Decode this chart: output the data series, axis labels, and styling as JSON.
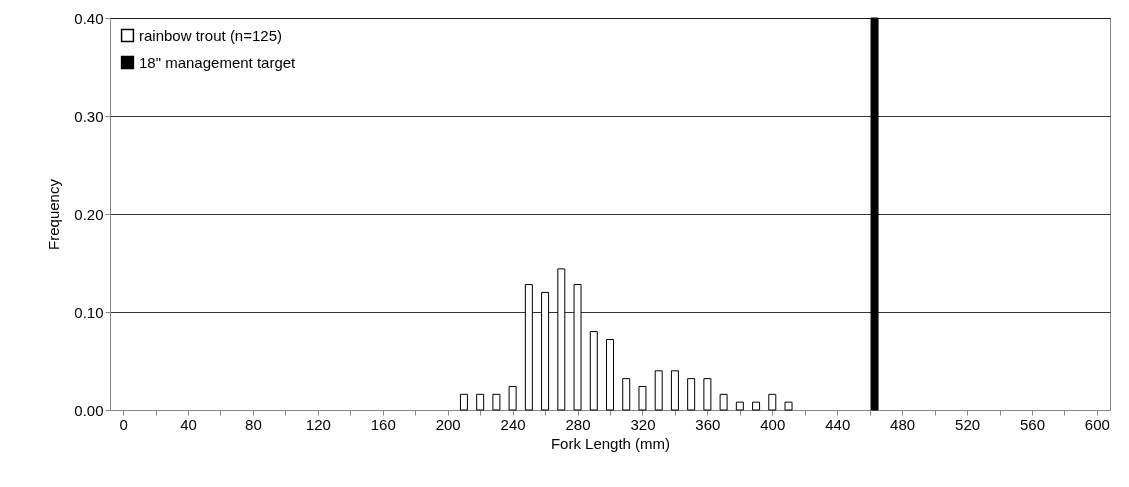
{
  "chart_data": {
    "type": "bar",
    "xlabel": "Fork Length (mm)",
    "ylabel": "Frequency",
    "xlim": [
      -5,
      605
    ],
    "xticks": [
      0,
      {
        "value": 20,
        "label": null
      },
      40,
      {
        "value": 60,
        "label": null
      },
      80,
      {
        "value": 100,
        "label": null
      },
      120,
      {
        "value": 140,
        "label": null
      },
      160,
      {
        "value": 180,
        "label": null
      },
      200,
      {
        "value": 220,
        "label": null
      },
      240,
      {
        "value": 260,
        "label": null
      },
      280,
      {
        "value": 300,
        "label": null
      },
      320,
      {
        "value": 340,
        "label": null
      },
      360,
      {
        "value": 380,
        "label": null
      },
      400,
      {
        "value": 420,
        "label": null
      },
      440,
      {
        "value": 460,
        "label": null
      },
      480,
      {
        "value": 500,
        "label": null
      },
      520,
      {
        "value": 540,
        "label": null
      },
      560,
      {
        "value": 580,
        "label": null
      },
      600
    ],
    "ylim": [
      0,
      0.4
    ],
    "yticks": [
      {
        "value": 0,
        "label": "0.00"
      },
      {
        "value": 0.1,
        "label": "0.10"
      },
      {
        "value": 0.2,
        "label": "0.20"
      },
      {
        "value": 0.3,
        "label": "0.30"
      },
      {
        "value": 0.4,
        "label": "0.40"
      }
    ],
    "grid": "y",
    "legend": "top left",
    "series": [
      {
        "name": "rainbow trout (n=125)",
        "color": "#ffffff",
        "x": [
          210,
          220,
          230,
          240,
          250,
          260,
          270,
          280,
          290,
          300,
          310,
          320,
          330,
          340,
          350,
          360,
          370,
          380,
          390,
          400,
          410
        ],
        "values": [
          0.016,
          0.016,
          0.016,
          0.024,
          0.128,
          0.12,
          0.144,
          0.128,
          0.08,
          0.072,
          0.032,
          0.024,
          0.04,
          0.04,
          0.032,
          0.032,
          0.016,
          0.008,
          0.008,
          0.016,
          0.008
        ]
      },
      {
        "name": "18\" management target",
        "color": "#000000",
        "x": [
          463
        ],
        "values": [
          0.4
        ]
      }
    ]
  }
}
